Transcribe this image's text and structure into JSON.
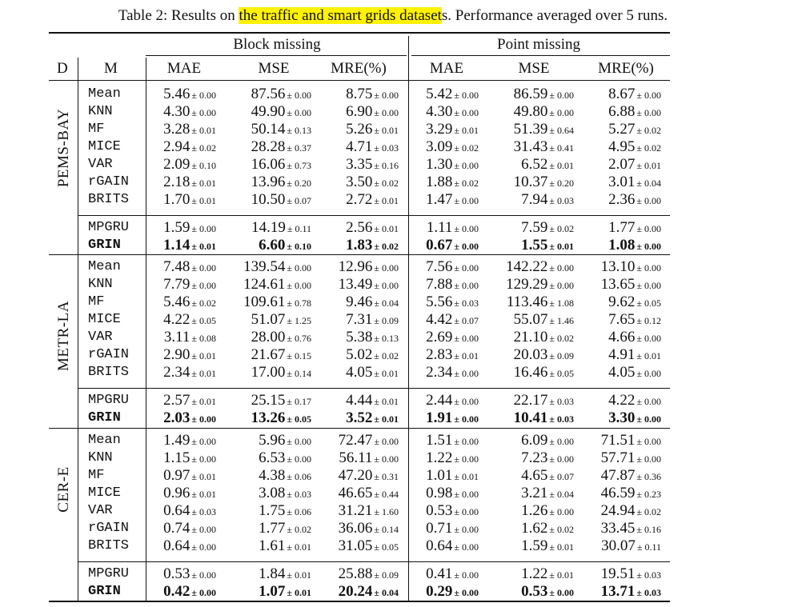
{
  "caption": {
    "prefix": "Table 2: Results on ",
    "highlight": "the traffic and smart grids dataset",
    "suffix": "s. Performance averaged over 5 runs."
  },
  "header": {
    "d": "D",
    "m": "M",
    "block_missing": "Block missing",
    "point_missing": "Point missing",
    "cols": [
      "MAE",
      "MSE",
      "MRE(%)",
      "MAE",
      "MSE",
      "MRE(%)"
    ]
  },
  "datasets": [
    {
      "name": "PEMS-BAY",
      "rows": [
        {
          "model": "Mean",
          "bold": false,
          "cells": [
            [
              "5.46",
              "± 0.00"
            ],
            [
              "87.56",
              "± 0.00"
            ],
            [
              "8.75",
              "± 0.00"
            ],
            [
              "5.42",
              "± 0.00"
            ],
            [
              "86.59",
              "± 0.00"
            ],
            [
              "8.67",
              "± 0.00"
            ]
          ]
        },
        {
          "model": "KNN",
          "bold": false,
          "cells": [
            [
              "4.30",
              "± 0.00"
            ],
            [
              "49.90",
              "± 0.00"
            ],
            [
              "6.90",
              "± 0.00"
            ],
            [
              "4.30",
              "± 0.00"
            ],
            [
              "49.80",
              "± 0.00"
            ],
            [
              "6.88",
              "± 0.00"
            ]
          ]
        },
        {
          "model": "MF",
          "bold": false,
          "cells": [
            [
              "3.28",
              "± 0.01"
            ],
            [
              "50.14",
              "± 0.13"
            ],
            [
              "5.26",
              "± 0.01"
            ],
            [
              "3.29",
              "± 0.01"
            ],
            [
              "51.39",
              "± 0.64"
            ],
            [
              "5.27",
              "± 0.02"
            ]
          ]
        },
        {
          "model": "MICE",
          "bold": false,
          "cells": [
            [
              "2.94",
              "± 0.02"
            ],
            [
              "28.28",
              "± 0.37"
            ],
            [
              "4.71",
              "± 0.03"
            ],
            [
              "3.09",
              "± 0.02"
            ],
            [
              "31.43",
              "± 0.41"
            ],
            [
              "4.95",
              "± 0.02"
            ]
          ]
        },
        {
          "model": "VAR",
          "bold": false,
          "cells": [
            [
              "2.09",
              "± 0.10"
            ],
            [
              "16.06",
              "± 0.73"
            ],
            [
              "3.35",
              "± 0.16"
            ],
            [
              "1.30",
              "± 0.00"
            ],
            [
              "6.52",
              "± 0.01"
            ],
            [
              "2.07",
              "± 0.01"
            ]
          ]
        },
        {
          "model": "rGAIN",
          "bold": false,
          "cells": [
            [
              "2.18",
              "± 0.01"
            ],
            [
              "13.96",
              "± 0.20"
            ],
            [
              "3.50",
              "± 0.02"
            ],
            [
              "1.88",
              "± 0.02"
            ],
            [
              "10.37",
              "± 0.20"
            ],
            [
              "3.01",
              "± 0.04"
            ]
          ]
        },
        {
          "model": "BRITS",
          "bold": false,
          "cells": [
            [
              "1.70",
              "± 0.01"
            ],
            [
              "10.50",
              "± 0.07"
            ],
            [
              "2.72",
              "± 0.01"
            ],
            [
              "1.47",
              "± 0.00"
            ],
            [
              "7.94",
              "± 0.03"
            ],
            [
              "2.36",
              "± 0.00"
            ]
          ]
        },
        {
          "model": "MPGRU",
          "bold": false,
          "cells": [
            [
              "1.59",
              "± 0.00"
            ],
            [
              "14.19",
              "± 0.11"
            ],
            [
              "2.56",
              "± 0.01"
            ],
            [
              "1.11",
              "± 0.00"
            ],
            [
              "7.59",
              "± 0.02"
            ],
            [
              "1.77",
              "± 0.00"
            ]
          ]
        },
        {
          "model": "GRIN",
          "bold": true,
          "cells": [
            [
              "1.14",
              "± 0.01"
            ],
            [
              "6.60",
              "± 0.10"
            ],
            [
              "1.83",
              "± 0.02"
            ],
            [
              "0.67",
              "± 0.00"
            ],
            [
              "1.55",
              "± 0.01"
            ],
            [
              "1.08",
              "± 0.00"
            ]
          ]
        }
      ]
    },
    {
      "name": "METR-LA",
      "rows": [
        {
          "model": "Mean",
          "bold": false,
          "cells": [
            [
              "7.48",
              "± 0.00"
            ],
            [
              "139.54",
              "± 0.00"
            ],
            [
              "12.96",
              "± 0.00"
            ],
            [
              "7.56",
              "± 0.00"
            ],
            [
              "142.22",
              "± 0.00"
            ],
            [
              "13.10",
              "± 0.00"
            ]
          ]
        },
        {
          "model": "KNN",
          "bold": false,
          "cells": [
            [
              "7.79",
              "± 0.00"
            ],
            [
              "124.61",
              "± 0.00"
            ],
            [
              "13.49",
              "± 0.00"
            ],
            [
              "7.88",
              "± 0.00"
            ],
            [
              "129.29",
              "± 0.00"
            ],
            [
              "13.65",
              "± 0.00"
            ]
          ]
        },
        {
          "model": "MF",
          "bold": false,
          "cells": [
            [
              "5.46",
              "± 0.02"
            ],
            [
              "109.61",
              "± 0.78"
            ],
            [
              "9.46",
              "± 0.04"
            ],
            [
              "5.56",
              "± 0.03"
            ],
            [
              "113.46",
              "± 1.08"
            ],
            [
              "9.62",
              "± 0.05"
            ]
          ]
        },
        {
          "model": "MICE",
          "bold": false,
          "cells": [
            [
              "4.22",
              "± 0.05"
            ],
            [
              "51.07",
              "± 1.25"
            ],
            [
              "7.31",
              "± 0.09"
            ],
            [
              "4.42",
              "± 0.07"
            ],
            [
              "55.07",
              "± 1.46"
            ],
            [
              "7.65",
              "± 0.12"
            ]
          ]
        },
        {
          "model": "VAR",
          "bold": false,
          "cells": [
            [
              "3.11",
              "± 0.08"
            ],
            [
              "28.00",
              "± 0.76"
            ],
            [
              "5.38",
              "± 0.13"
            ],
            [
              "2.69",
              "± 0.00"
            ],
            [
              "21.10",
              "± 0.02"
            ],
            [
              "4.66",
              "± 0.00"
            ]
          ]
        },
        {
          "model": "rGAIN",
          "bold": false,
          "cells": [
            [
              "2.90",
              "± 0.01"
            ],
            [
              "21.67",
              "± 0.15"
            ],
            [
              "5.02",
              "± 0.02"
            ],
            [
              "2.83",
              "± 0.01"
            ],
            [
              "20.03",
              "± 0.09"
            ],
            [
              "4.91",
              "± 0.01"
            ]
          ]
        },
        {
          "model": "BRITS",
          "bold": false,
          "cells": [
            [
              "2.34",
              "± 0.01"
            ],
            [
              "17.00",
              "± 0.14"
            ],
            [
              "4.05",
              "± 0.01"
            ],
            [
              "2.34",
              "± 0.00"
            ],
            [
              "16.46",
              "± 0.05"
            ],
            [
              "4.05",
              "± 0.00"
            ]
          ]
        },
        {
          "model": "MPGRU",
          "bold": false,
          "cells": [
            [
              "2.57",
              "± 0.01"
            ],
            [
              "25.15",
              "± 0.17"
            ],
            [
              "4.44",
              "± 0.01"
            ],
            [
              "2.44",
              "± 0.00"
            ],
            [
              "22.17",
              "± 0.03"
            ],
            [
              "4.22",
              "± 0.00"
            ]
          ]
        },
        {
          "model": "GRIN",
          "bold": true,
          "cells": [
            [
              "2.03",
              "± 0.00"
            ],
            [
              "13.26",
              "± 0.05"
            ],
            [
              "3.52",
              "± 0.01"
            ],
            [
              "1.91",
              "± 0.00"
            ],
            [
              "10.41",
              "± 0.03"
            ],
            [
              "3.30",
              "± 0.00"
            ]
          ]
        }
      ]
    },
    {
      "name": "CER-E",
      "rows": [
        {
          "model": "Mean",
          "bold": false,
          "cells": [
            [
              "1.49",
              "± 0.00"
            ],
            [
              "5.96",
              "± 0.00"
            ],
            [
              "72.47",
              "± 0.00"
            ],
            [
              "1.51",
              "± 0.00"
            ],
            [
              "6.09",
              "± 0.00"
            ],
            [
              "71.51",
              "± 0.00"
            ]
          ]
        },
        {
          "model": "KNN",
          "bold": false,
          "cells": [
            [
              "1.15",
              "± 0.00"
            ],
            [
              "6.53",
              "± 0.00"
            ],
            [
              "56.11",
              "± 0.00"
            ],
            [
              "1.22",
              "± 0.00"
            ],
            [
              "7.23",
              "± 0.00"
            ],
            [
              "57.71",
              "± 0.00"
            ]
          ]
        },
        {
          "model": "MF",
          "bold": false,
          "cells": [
            [
              "0.97",
              "± 0.01"
            ],
            [
              "4.38",
              "± 0.06"
            ],
            [
              "47.20",
              "± 0.31"
            ],
            [
              "1.01",
              "± 0.01"
            ],
            [
              "4.65",
              "± 0.07"
            ],
            [
              "47.87",
              "± 0.36"
            ]
          ]
        },
        {
          "model": "MICE",
          "bold": false,
          "cells": [
            [
              "0.96",
              "± 0.01"
            ],
            [
              "3.08",
              "± 0.03"
            ],
            [
              "46.65",
              "± 0.44"
            ],
            [
              "0.98",
              "± 0.00"
            ],
            [
              "3.21",
              "± 0.04"
            ],
            [
              "46.59",
              "± 0.23"
            ]
          ]
        },
        {
          "model": "VAR",
          "bold": false,
          "cells": [
            [
              "0.64",
              "± 0.03"
            ],
            [
              "1.75",
              "± 0.06"
            ],
            [
              "31.21",
              "± 1.60"
            ],
            [
              "0.53",
              "± 0.00"
            ],
            [
              "1.26",
              "± 0.00"
            ],
            [
              "24.94",
              "± 0.02"
            ]
          ]
        },
        {
          "model": "rGAIN",
          "bold": false,
          "cells": [
            [
              "0.74",
              "± 0.00"
            ],
            [
              "1.77",
              "± 0.02"
            ],
            [
              "36.06",
              "± 0.14"
            ],
            [
              "0.71",
              "± 0.00"
            ],
            [
              "1.62",
              "± 0.02"
            ],
            [
              "33.45",
              "± 0.16"
            ]
          ]
        },
        {
          "model": "BRITS",
          "bold": false,
          "cells": [
            [
              "0.64",
              "± 0.00"
            ],
            [
              "1.61",
              "± 0.01"
            ],
            [
              "31.05",
              "± 0.05"
            ],
            [
              "0.64",
              "± 0.00"
            ],
            [
              "1.59",
              "± 0.01"
            ],
            [
              "30.07",
              "± 0.11"
            ]
          ]
        },
        {
          "model": "MPGRU",
          "bold": false,
          "cells": [
            [
              "0.53",
              "± 0.00"
            ],
            [
              "1.84",
              "± 0.01"
            ],
            [
              "25.88",
              "± 0.09"
            ],
            [
              "0.41",
              "± 0.00"
            ],
            [
              "1.22",
              "± 0.01"
            ],
            [
              "19.51",
              "± 0.03"
            ]
          ]
        },
        {
          "model": "GRIN",
          "bold": true,
          "cells": [
            [
              "0.42",
              "± 0.00"
            ],
            [
              "1.07",
              "± 0.01"
            ],
            [
              "20.24",
              "± 0.04"
            ],
            [
              "0.29",
              "± 0.00"
            ],
            [
              "0.53",
              "± 0.00"
            ],
            [
              "13.71",
              "± 0.03"
            ]
          ]
        }
      ]
    }
  ]
}
